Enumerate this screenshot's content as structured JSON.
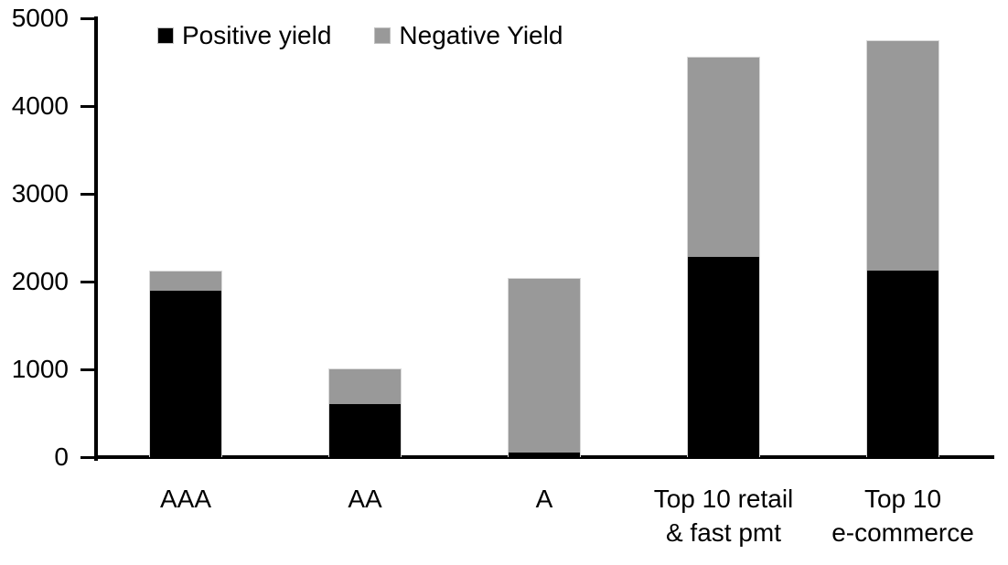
{
  "chart_data": {
    "type": "bar",
    "stacked": true,
    "title": "",
    "xlabel": "",
    "ylabel": "",
    "categories": [
      "AAA",
      "AA",
      "A",
      "Top 10 retail\n& fast pmt",
      "Top 10\ne-commerce"
    ],
    "series": [
      {
        "name": "Positive yield",
        "color": "#000000",
        "values": [
          1900,
          600,
          50,
          2280,
          2130
        ]
      },
      {
        "name": "Negative Yield",
        "color": "#999999",
        "values": [
          210,
          400,
          1980,
          2270,
          2610
        ]
      }
    ],
    "totals": [
      2110,
      1000,
      2030,
      4550,
      4740
    ],
    "ylim": [
      0,
      5000
    ],
    "yticks": [
      0,
      1000,
      2000,
      3000,
      4000,
      5000
    ],
    "legend_position": "top-left",
    "grid": false,
    "axis_color": "#000000",
    "background_color": "#ffffff",
    "bar_outline_color": "#d9d9d9"
  }
}
